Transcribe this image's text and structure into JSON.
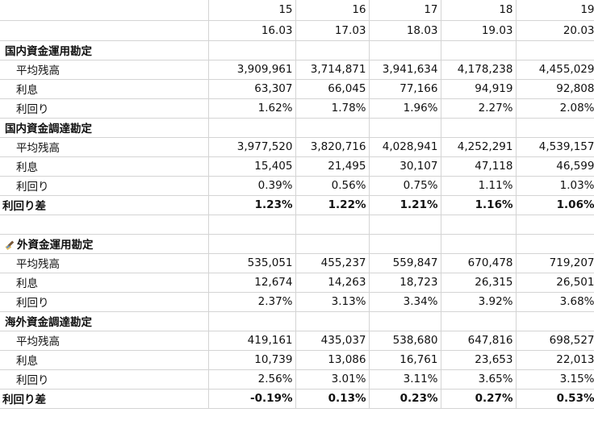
{
  "header": {
    "periods": [
      "15",
      "16",
      "17",
      "18",
      "19"
    ],
    "dates": [
      "16.03",
      "17.03",
      "18.03",
      "19.03",
      "20.03"
    ]
  },
  "domestic_investment": {
    "title": "国内資金運用勘定",
    "rows": [
      {
        "label": "平均残高",
        "values": [
          "3,909,961",
          "3,714,871",
          "3,941,634",
          "4,178,238",
          "4,455,029"
        ]
      },
      {
        "label": "利息",
        "values": [
          "63,307",
          "66,045",
          "77,166",
          "94,919",
          "92,808"
        ]
      },
      {
        "label": "利回り",
        "values": [
          "1.62%",
          "1.78%",
          "1.96%",
          "2.27%",
          "2.08%"
        ]
      }
    ]
  },
  "domestic_funding": {
    "title": "国内資金調達勘定",
    "rows": [
      {
        "label": "平均残高",
        "values": [
          "3,977,520",
          "3,820,716",
          "4,028,941",
          "4,252,291",
          "4,539,157"
        ]
      },
      {
        "label": "利息",
        "values": [
          "15,405",
          "21,495",
          "30,107",
          "47,118",
          "46,599"
        ]
      },
      {
        "label": "利回り",
        "values": [
          "0.39%",
          "0.56%",
          "0.75%",
          "1.11%",
          "1.03%"
        ]
      }
    ]
  },
  "domestic_spread": {
    "label": "利回り差",
    "values": [
      "1.23%",
      "1.22%",
      "1.21%",
      "1.16%",
      "1.06%"
    ]
  },
  "overseas_investment": {
    "title": "外資金運用勘定",
    "icon": "paint-brush-icon",
    "rows": [
      {
        "label": "平均残高",
        "values": [
          "535,051",
          "455,237",
          "559,847",
          "670,478",
          "719,207"
        ]
      },
      {
        "label": "利息",
        "values": [
          "12,674",
          "14,263",
          "18,723",
          "26,315",
          "26,501"
        ]
      },
      {
        "label": "利回り",
        "values": [
          "2.37%",
          "3.13%",
          "3.34%",
          "3.92%",
          "3.68%"
        ]
      }
    ]
  },
  "overseas_funding": {
    "title": "海外資金調達勘定",
    "rows": [
      {
        "label": "平均残高",
        "values": [
          "419,161",
          "435,037",
          "538,680",
          "647,816",
          "698,527"
        ]
      },
      {
        "label": "利息",
        "values": [
          "10,739",
          "13,086",
          "16,761",
          "23,653",
          "22,013"
        ]
      },
      {
        "label": "利回り",
        "values": [
          "2.56%",
          "3.01%",
          "3.11%",
          "3.65%",
          "3.15%"
        ]
      }
    ]
  },
  "overseas_spread": {
    "label": "利回り差",
    "values": [
      "-0.19%",
      "0.13%",
      "0.23%",
      "0.27%",
      "0.53%"
    ]
  }
}
